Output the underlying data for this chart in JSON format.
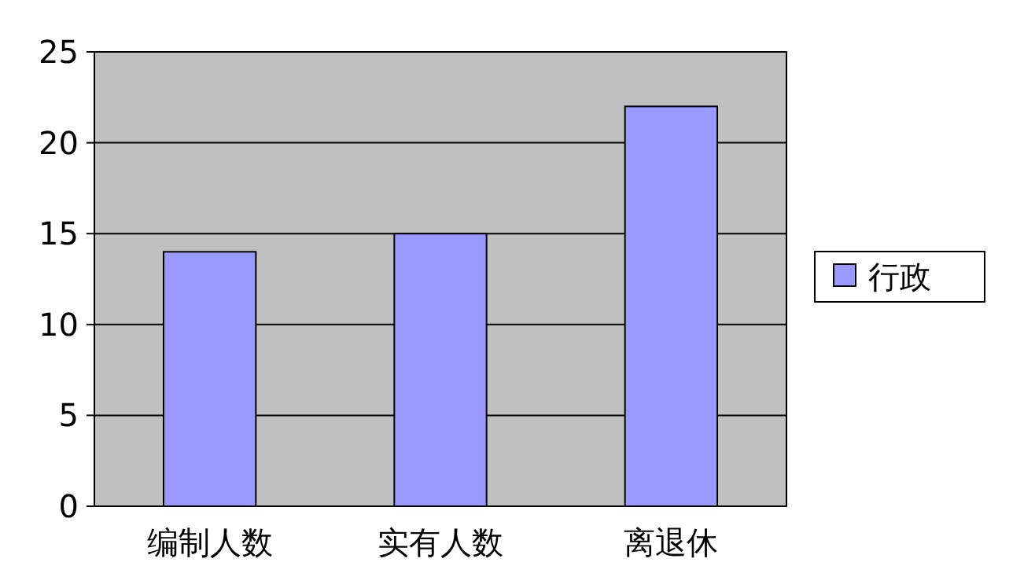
{
  "chart_data": {
    "type": "bar",
    "categories": [
      "编制人数",
      "实有人数",
      "离退休"
    ],
    "series": [
      {
        "name": "行政",
        "color": "#9999ff",
        "values": [
          14,
          15,
          22
        ]
      }
    ],
    "ylim": [
      0,
      25
    ],
    "yticks": [
      0,
      5,
      10,
      15,
      20,
      25
    ],
    "grid": "y",
    "legend": "right"
  }
}
